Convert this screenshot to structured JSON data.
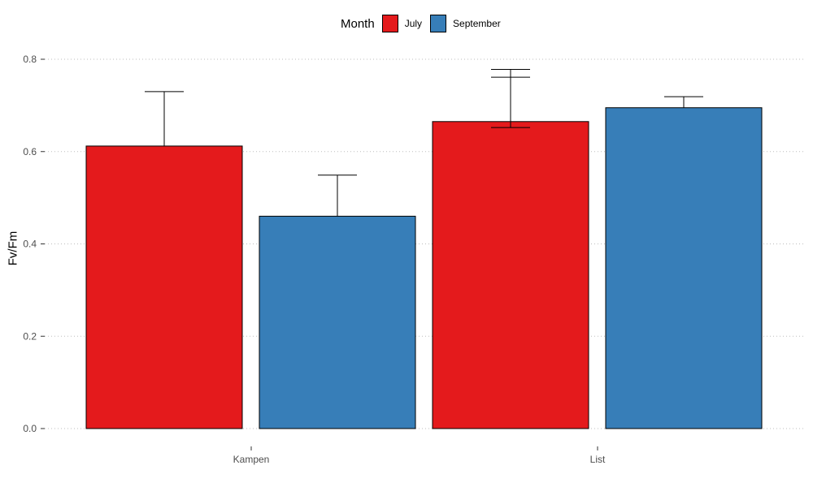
{
  "chart_data": {
    "type": "bar",
    "xlabel": "",
    "ylabel": "Fv/Fm",
    "ylim": [
      0,
      0.8
    ],
    "yticks": [
      "0.0",
      "0.2",
      "0.4",
      "0.6",
      "0.8"
    ],
    "categories": [
      "Kampen",
      "List"
    ],
    "legend": {
      "title": "Month",
      "position": "top",
      "entries": [
        "July",
        "September"
      ]
    },
    "series": [
      {
        "name": "July",
        "color": "#e41a1c",
        "values": [
          0.612,
          0.665
        ],
        "error_upper": [
          [
            0.73
          ],
          [
            0.778,
            0.761
          ]
        ],
        "error_lower": [
          [],
          [
            0.652
          ]
        ]
      },
      {
        "name": "September",
        "color": "#377eb8",
        "values": [
          0.46,
          0.695
        ],
        "error_upper": [
          [
            0.549
          ],
          [
            0.719
          ]
        ],
        "error_lower": [
          [],
          []
        ]
      }
    ],
    "grid": "horizontal dotted"
  }
}
